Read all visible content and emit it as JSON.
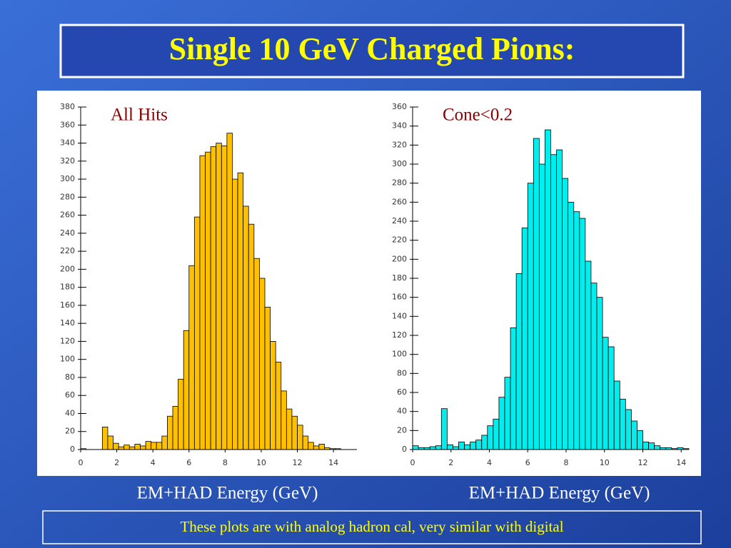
{
  "title": "Single 10 GeV Charged Pions:",
  "chart_data": [
    {
      "type": "histogram",
      "title": "All Hits",
      "x_label": "EM+HAD Energy (GeV)",
      "color": "#ffc000",
      "bins": [
        0,
        0.3,
        0.6,
        0.9,
        1.2,
        1.5,
        1.8,
        2.1,
        2.4,
        2.7,
        3,
        3.3,
        3.6,
        3.9,
        4.2,
        4.5,
        4.8,
        5.1,
        5.4,
        5.7,
        6,
        6.3,
        6.6,
        6.9,
        7.2,
        7.5,
        7.8,
        8.1,
        8.4,
        8.7,
        9,
        9.3,
        9.6,
        9.9,
        10.2,
        10.5,
        10.8,
        11.1,
        11.4,
        11.7,
        12,
        12.3,
        12.6,
        12.9,
        13.2,
        13.5,
        13.8,
        14.1,
        14.4,
        14.7,
        15,
        15.3
      ],
      "values": [
        1,
        0,
        0,
        0,
        25,
        15,
        7,
        3,
        5,
        3,
        6,
        4,
        9,
        8,
        8,
        15,
        37,
        48,
        78,
        132,
        204,
        258,
        326,
        330,
        336,
        340,
        337,
        351,
        300,
        307,
        270,
        250,
        212,
        190,
        158,
        120,
        97,
        65,
        45,
        37,
        27,
        15,
        8,
        4,
        6,
        2,
        1,
        1,
        0,
        0,
        0
      ],
      "xlim": [
        0,
        15.3
      ],
      "ylim": [
        0,
        380
      ],
      "xticks": [
        0,
        2,
        4,
        6,
        8,
        10,
        12,
        14
      ],
      "yticks": [
        0,
        20,
        40,
        60,
        80,
        100,
        120,
        140,
        160,
        180,
        200,
        220,
        240,
        260,
        280,
        300,
        320,
        340,
        360,
        380
      ]
    },
    {
      "type": "histogram",
      "title": "Cone<0.2",
      "x_label": "EM+HAD Energy (GeV)",
      "color": "#00eeee",
      "bins": [
        0,
        0.3,
        0.6,
        0.9,
        1.2,
        1.5,
        1.8,
        2.1,
        2.4,
        2.7,
        3,
        3.3,
        3.6,
        3.9,
        4.2,
        4.5,
        4.8,
        5.1,
        5.4,
        5.7,
        6,
        6.3,
        6.6,
        6.9,
        7.2,
        7.5,
        7.8,
        8.1,
        8.4,
        8.7,
        9,
        9.3,
        9.6,
        9.9,
        10.2,
        10.5,
        10.8,
        11.1,
        11.4,
        11.7,
        12,
        12.3,
        12.6,
        12.9,
        13.2,
        13.5,
        13.8,
        14.1,
        14.4
      ],
      "values": [
        4,
        2,
        2,
        3,
        4,
        43,
        5,
        3,
        8,
        5,
        8,
        10,
        15,
        25,
        32,
        55,
        76,
        128,
        185,
        233,
        280,
        327,
        300,
        336,
        310,
        315,
        285,
        260,
        250,
        243,
        198,
        175,
        160,
        118,
        108,
        72,
        53,
        42,
        30,
        20,
        8,
        7,
        4,
        2,
        2,
        1,
        2,
        1
      ],
      "xlim": [
        0,
        14.4
      ],
      "ylim": [
        0,
        360
      ],
      "xticks": [
        0,
        2,
        4,
        6,
        8,
        10,
        12,
        14
      ],
      "yticks": [
        0,
        20,
        40,
        60,
        80,
        100,
        120,
        140,
        160,
        180,
        200,
        220,
        240,
        260,
        280,
        300,
        320,
        340,
        360
      ]
    }
  ],
  "note": "These plots are with analog hadron cal,  very similar with digital"
}
